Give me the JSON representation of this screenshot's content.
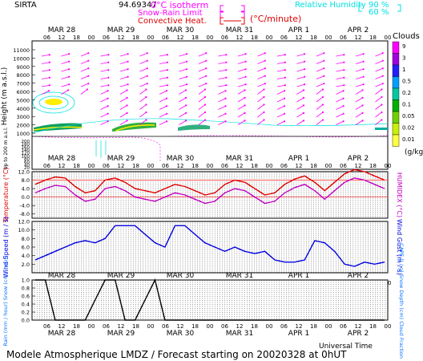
{
  "header": {
    "site": "SIRTA",
    "coord": "94.69347",
    "iso_label": "0°C isotherm",
    "snow_label": "Snow-Rain Limit",
    "conv_label": "Convective Heat.",
    "conv_unit": "(°C/minute)",
    "rh_label": "Relative Humidity",
    "rh_90": "90 %",
    "rh_60": "60 %"
  },
  "time_axis": {
    "days": [
      "MAR 28",
      "MAR 29",
      "MAR 30",
      "MAR 31",
      "APR  1",
      "APR  2"
    ],
    "hours": [
      "06",
      "12",
      "18",
      "00"
    ],
    "universal_time": "Universal Time"
  },
  "footer": "Modele Atmospherique LMDZ / Forecast starting on 20020328 at 0hUT",
  "chart_data": [
    {
      "type": "heatmap",
      "name": "clouds-wind-height",
      "ylabel": "Height (m a.s.l.)",
      "sub_ylabel": "Up to 200 m a.s.l.",
      "yticks": [
        "11000",
        "10000",
        "9000",
        "8000",
        "7000",
        "6000",
        "5000",
        "4000",
        "3000",
        "2000",
        "1000",
        "200",
        "180",
        "160",
        "140",
        "120",
        "100",
        "80",
        "60",
        "40",
        "20"
      ],
      "legend_title": "Clouds",
      "legend_unit": "(g/kg)",
      "legend_levels": [
        "9",
        "3",
        "1",
        "0.5",
        "0.2",
        "0.1",
        "0.05",
        "0.02",
        "0.01"
      ],
      "legend_colors": [
        "#ff00ff",
        "#a000e0",
        "#2020ff",
        "#00a0ff",
        "#00c8a0",
        "#00b000",
        "#70d000",
        "#c8f000",
        "#ffff40"
      ]
    },
    {
      "type": "line",
      "name": "temperature-humidex",
      "ylabel": "Temperature (°C)",
      "right_label": "HUMIDEX (°C)",
      "yticks": [
        "12.0",
        "8.0",
        "4.0",
        "0.0",
        "-4.0",
        "-8.0"
      ],
      "ylim": [
        -10,
        12
      ],
      "series": [
        {
          "color": "#e00000",
          "values": [
            6,
            8,
            9.5,
            9,
            5,
            2,
            3,
            8,
            9,
            7,
            4,
            3,
            2,
            4,
            6,
            5,
            3,
            1,
            2,
            6,
            8,
            7,
            4,
            1,
            2,
            6,
            8.5,
            10,
            7,
            3,
            7,
            11,
            13,
            12,
            10,
            8
          ]
        },
        {
          "color": "#c000c0",
          "values": [
            2,
            4,
            5.5,
            5,
            1,
            -2,
            -1,
            4,
            5,
            3,
            0,
            -1,
            -2,
            0,
            2,
            1,
            -1,
            -3,
            -2,
            2,
            4,
            3,
            0,
            -3,
            -2,
            2,
            4.5,
            6,
            3,
            -1,
            3,
            7,
            9,
            8,
            6,
            4
          ]
        }
      ]
    },
    {
      "type": "line",
      "name": "wind-speed",
      "ylabel": "Wind Speed (m / s)",
      "right_label": "Wind Gust (m / s)",
      "yticks": [
        "12.0",
        "10.0",
        "8.0",
        "6.0",
        "4.0",
        "2.0"
      ],
      "ylim": [
        0,
        12.0
      ],
      "series": [
        {
          "color": "#0000e0",
          "values": [
            3,
            4,
            5,
            6,
            7,
            7.5,
            7,
            8,
            11,
            11,
            11,
            9,
            7,
            6,
            11,
            11,
            9,
            7,
            6,
            5,
            6,
            5,
            4.5,
            5,
            3,
            2.5,
            2.5,
            3,
            7.5,
            7,
            5,
            2,
            1.5,
            2.5,
            2,
            2.5
          ]
        }
      ]
    },
    {
      "type": "line",
      "name": "precipitation",
      "ylabel": "Rain (mm / hour) Snow (cm / hour)",
      "right_label": "CAPE (J / g) Snow Depth (cm) Cloud Fraction",
      "yticks": [
        "1.0",
        "0.8",
        "0.6",
        "0.4",
        "0.2",
        "0.0"
      ],
      "ylim": [
        0,
        1.0
      ],
      "series": [
        {
          "color": "#000000",
          "values": [
            1,
            1,
            0,
            0,
            0,
            0,
            0.5,
            1,
            1,
            0,
            0,
            0.5,
            1,
            0,
            0,
            0,
            0,
            0,
            0,
            0,
            0,
            0,
            0,
            0,
            0,
            0,
            0,
            0,
            0,
            0,
            0,
            0,
            0,
            0,
            0,
            0
          ]
        }
      ]
    }
  ]
}
